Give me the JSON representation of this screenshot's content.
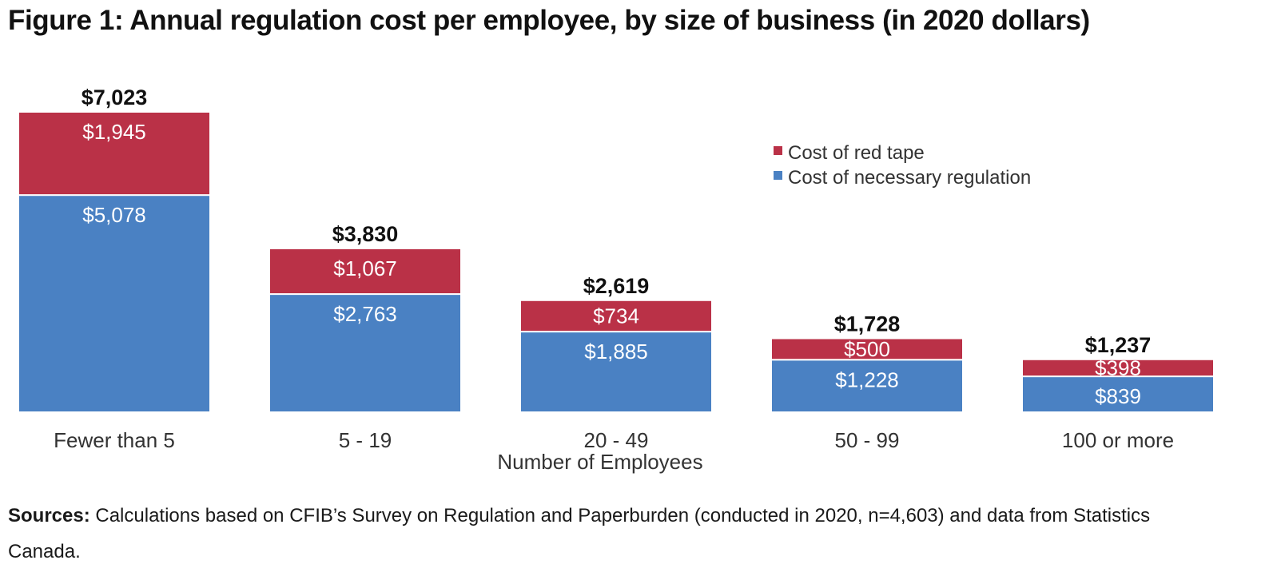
{
  "figure": {
    "title": "Figure 1: Annual regulation cost per employee, by size of business (in 2020 dollars)"
  },
  "sources": {
    "label": "Sources:",
    "text": "Calculations based on CFIB’s Survey on Regulation and Paperburden (conducted in 2020, n=4,603) and data from Statistics Canada."
  },
  "colors": {
    "red_tape": "#BA3147",
    "necessary": "#4A81C3"
  },
  "chart_data": {
    "type": "bar",
    "stacked": true,
    "title": "Figure 1: Annual regulation cost per employee, by size of business (in 2020 dollars)",
    "xlabel": "Number of Employees",
    "ylabel": "",
    "ylim": [
      0,
      7023
    ],
    "categories": [
      "Fewer than 5",
      "5 - 19",
      "20 - 49",
      "50 - 99",
      "100 or more"
    ],
    "series": [
      {
        "name": "Cost of necessary regulation",
        "values": [
          5078,
          2763,
          1885,
          1228,
          839
        ],
        "labels": [
          "$5,078",
          "$2,763",
          "$1,885",
          "$1,228",
          "$839"
        ]
      },
      {
        "name": "Cost of red tape",
        "values": [
          1945,
          1067,
          734,
          500,
          398
        ],
        "labels": [
          "$1,945",
          "$1,067",
          "$734",
          "$500",
          "$398"
        ]
      }
    ],
    "totals": [
      7023,
      3830,
      2619,
      1728,
      1237
    ],
    "total_labels": [
      "$7,023",
      "$3,830",
      "$2,619",
      "$1,728",
      "$1,237"
    ],
    "legend": [
      "Cost of red tape",
      "Cost of necessary regulation"
    ],
    "legend_position": "top-right",
    "grid": false
  }
}
